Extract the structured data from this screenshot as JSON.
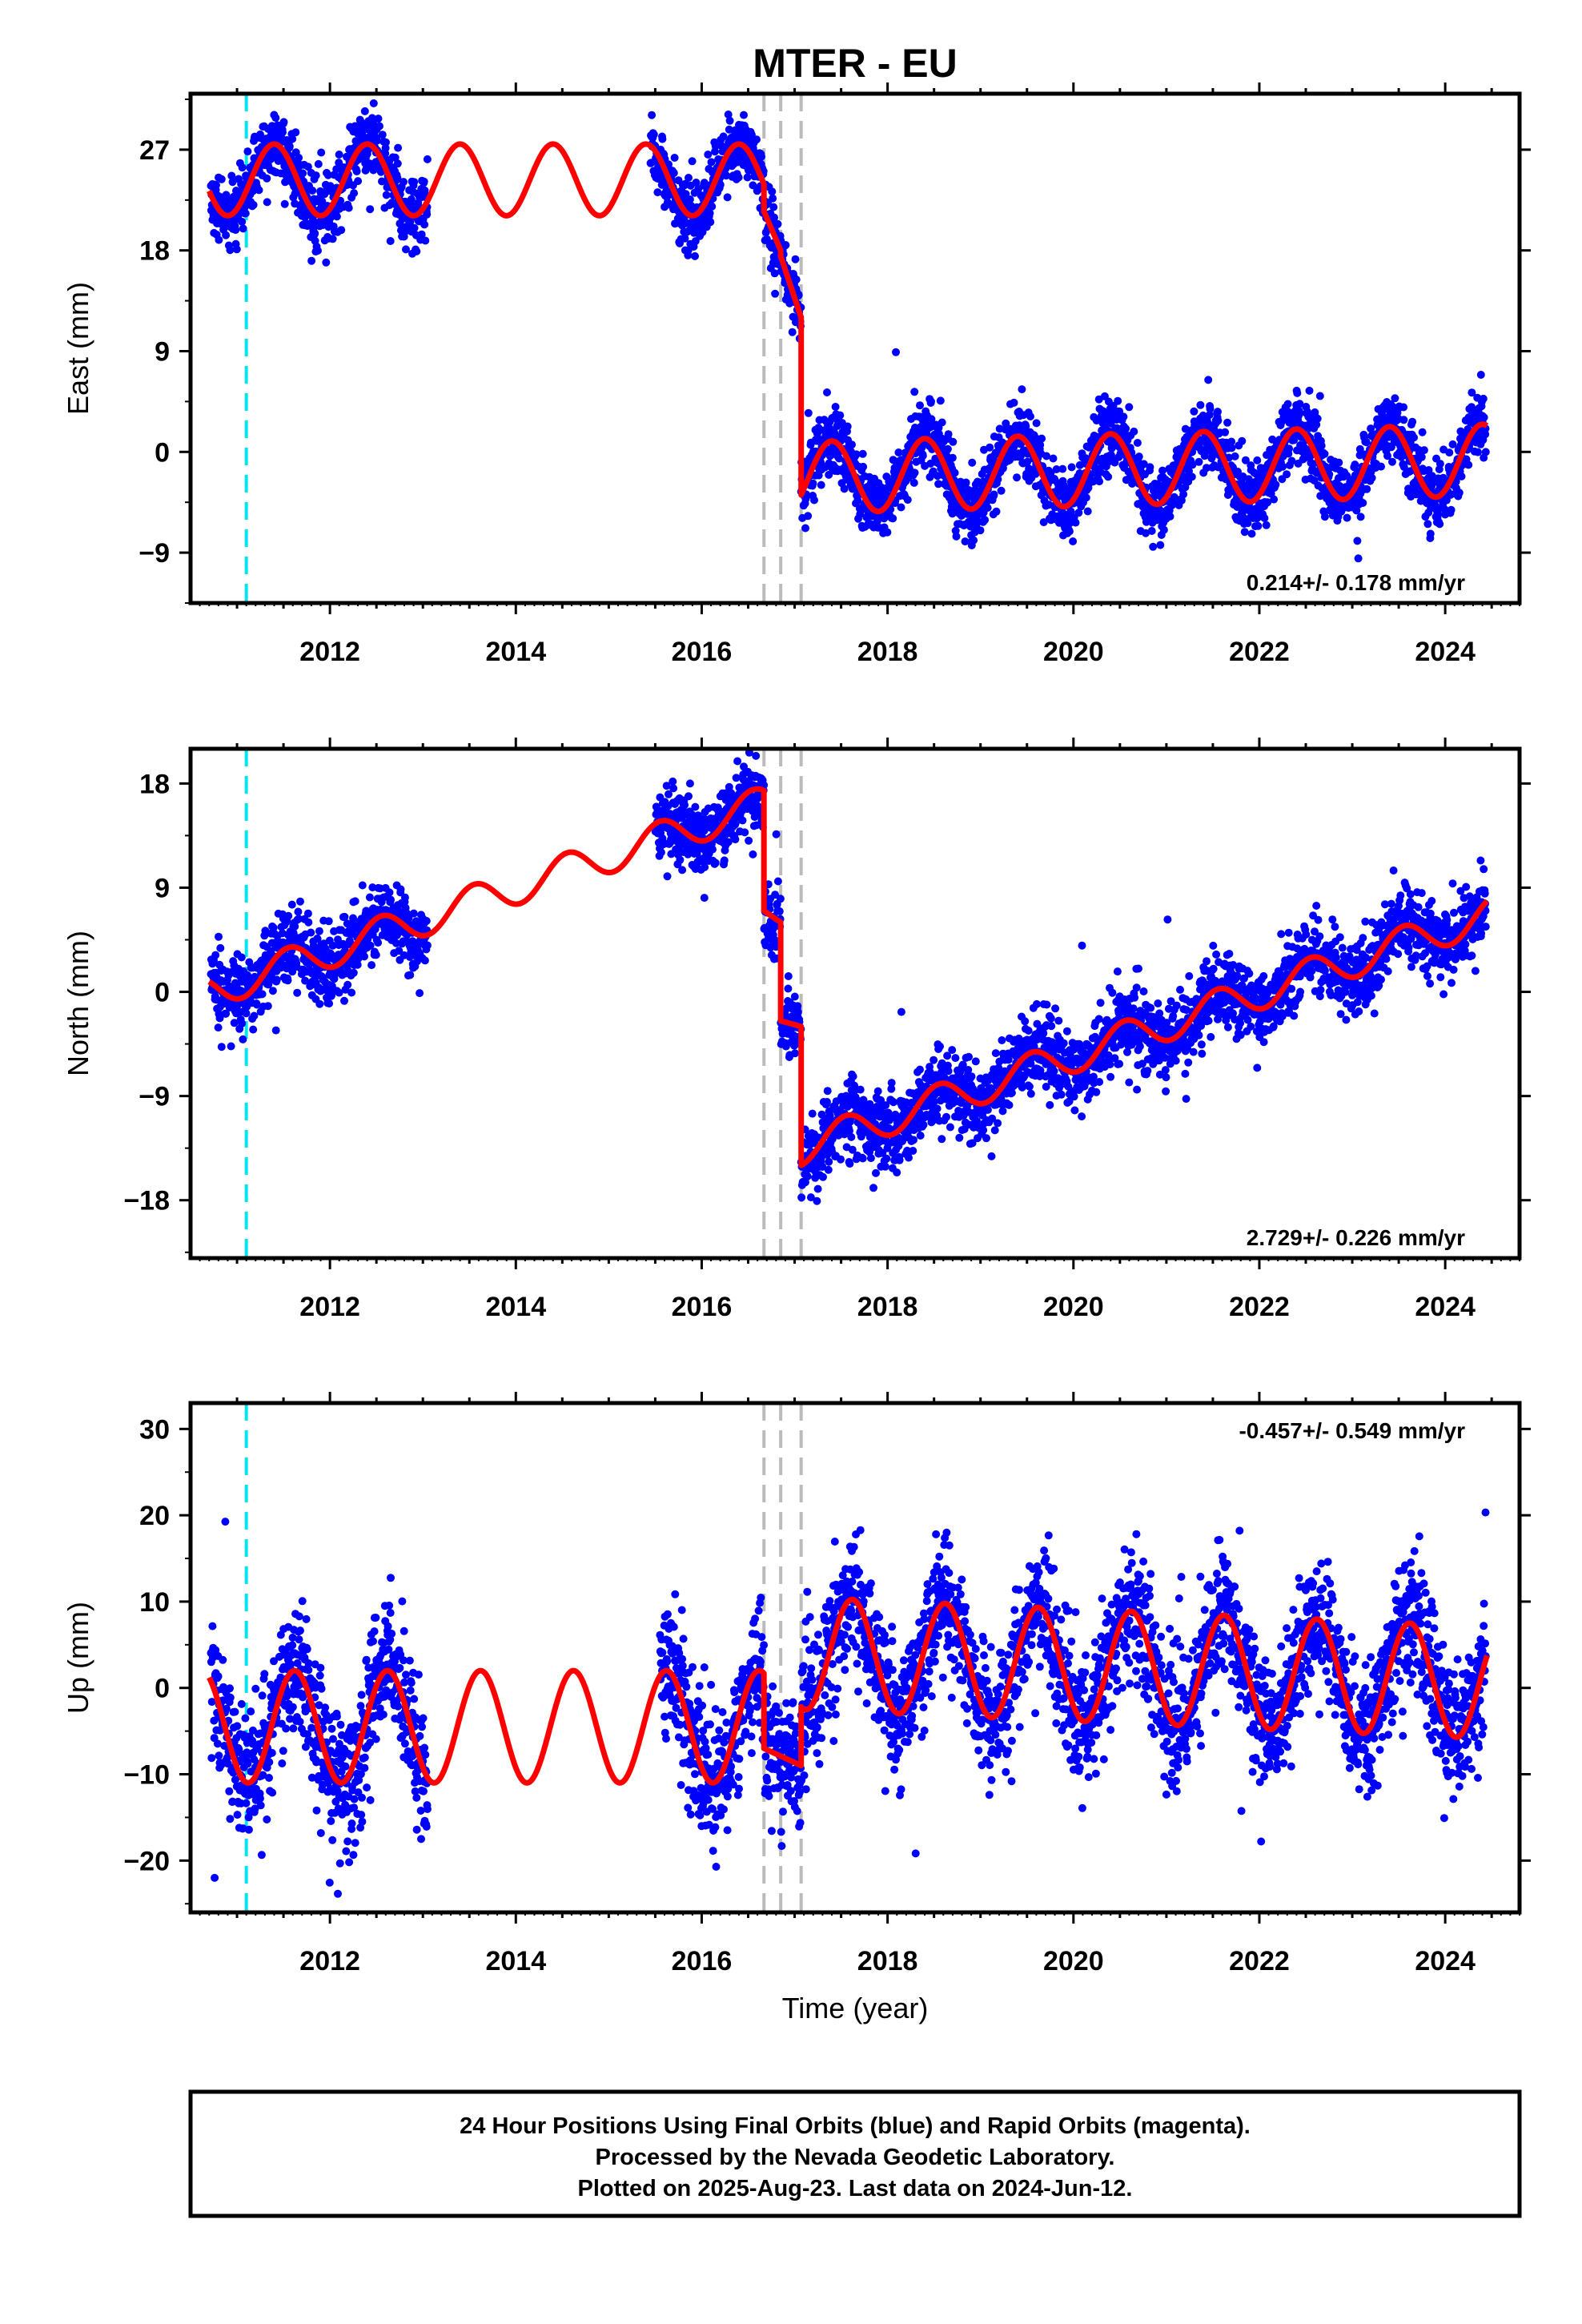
{
  "title": "MTER - EU",
  "footer": {
    "line1": "24 Hour Positions Using Final Orbits (blue) and Rapid Orbits (magenta).",
    "line2": "Processed by the Nevada Geodetic Laboratory.",
    "line3": "Plotted on 2025-Aug-23. Last data on 2024-Jun-12."
  },
  "colors": {
    "observations": "#0000ff",
    "model": "#ff0000",
    "antenna_change": "#00e5ee",
    "equipment_change": "#bbbbbb"
  },
  "chart_data": [
    {
      "type": "scatter",
      "panel": "east",
      "ylabel": "East (mm)",
      "xlabel": "",
      "xlim": [
        2010.5,
        2024.8
      ],
      "ylim": [
        -13.5,
        32
      ],
      "xticks": [
        2012,
        2014,
        2016,
        2018,
        2020,
        2022,
        2024
      ],
      "yticks": [
        -9,
        0,
        9,
        18,
        27
      ],
      "ytick_labels": [
        "−9",
        "0",
        "9",
        "18",
        "27"
      ],
      "rate_label": "0.214+/- 0.178 mm/yr",
      "rate_position": "bottom-right",
      "vertical_lines": [
        {
          "x": 2011.1,
          "kind": "antenna_change"
        },
        {
          "x": 2016.67,
          "kind": "equipment_change"
        },
        {
          "x": 2016.85,
          "kind": "equipment_change"
        },
        {
          "x": 2017.07,
          "kind": "equipment_change"
        }
      ],
      "series": [
        {
          "kind": "model",
          "segments": [
            {
              "x": [
                2010.7,
                2016.67
              ],
              "offset": 24.3,
              "amplitude": 3.2,
              "phase_peak": 0.4,
              "trend": 0.0
            },
            {
              "x": [
                2016.67,
                2016.85
              ],
              "values": [
                21.5,
                18.0
              ]
            },
            {
              "x": [
                2016.85,
                2017.07
              ],
              "values": [
                17.5,
                12.0
              ]
            },
            {
              "x": [
                2017.07,
                2024.45
              ],
              "offset": -2.3,
              "amplitude": 3.2,
              "phase_peak": 0.4,
              "trend": 0.214
            }
          ]
        },
        {
          "kind": "observations",
          "count": 4200,
          "noise": 1.5,
          "gaps": [
            [
              2013.05,
              2015.45
            ]
          ]
        }
      ]
    },
    {
      "type": "scatter",
      "panel": "north",
      "ylabel": "North (mm)",
      "xlabel": "",
      "xlim": [
        2010.5,
        2024.8
      ],
      "ylim": [
        -23,
        21
      ],
      "xticks": [
        2012,
        2014,
        2016,
        2018,
        2020,
        2022,
        2024
      ],
      "yticks": [
        -18,
        -9,
        0,
        9,
        18
      ],
      "ytick_labels": [
        "−18",
        "−9",
        "0",
        "9",
        "18"
      ],
      "rate_label": "2.729+/- 0.226 mm/yr",
      "rate_position": "bottom-right",
      "vertical_lines": [
        {
          "x": 2011.1,
          "kind": "antenna_change"
        },
        {
          "x": 2016.67,
          "kind": "equipment_change"
        },
        {
          "x": 2016.85,
          "kind": "equipment_change"
        },
        {
          "x": 2017.07,
          "kind": "equipment_change"
        }
      ],
      "series": [
        {
          "kind": "model",
          "segments": [
            {
              "x": [
                2010.7,
                2016.67
              ],
              "offset": 0.0,
              "amplitude": 1.5,
              "phase_peak": 0.55,
              "trend": 2.729,
              "t0": 2010.7
            },
            {
              "x": [
                2016.67,
                2016.85
              ],
              "values": [
                7.0,
                6.0
              ]
            },
            {
              "x": [
                2016.85,
                2017.07
              ],
              "values": [
                -2.5,
                -3.0
              ]
            },
            {
              "x": [
                2017.07,
                2024.45
              ],
              "offset": -13.5,
              "amplitude": 1.5,
              "phase_peak": 0.55,
              "trend": 2.729,
              "t0": 2017.07
            }
          ]
        },
        {
          "kind": "observations",
          "count": 4200,
          "noise": 1.6,
          "gaps": [
            [
              2013.05,
              2015.5
            ]
          ]
        }
      ]
    },
    {
      "type": "scatter",
      "panel": "up",
      "ylabel": "Up (mm)",
      "xlabel": "Time (year)",
      "xlim": [
        2010.5,
        2024.8
      ],
      "ylim": [
        -26,
        33
      ],
      "xticks": [
        2012,
        2014,
        2016,
        2018,
        2020,
        2022,
        2024
      ],
      "yticks": [
        -20,
        -10,
        0,
        10,
        20,
        30
      ],
      "ytick_labels": [
        "−20",
        "−10",
        "0",
        "10",
        "20",
        "30"
      ],
      "rate_label": "-0.457+/- 0.549 mm/yr",
      "rate_position": "top-right",
      "vertical_lines": [
        {
          "x": 2011.1,
          "kind": "antenna_change"
        },
        {
          "x": 2016.67,
          "kind": "equipment_change"
        },
        {
          "x": 2016.85,
          "kind": "equipment_change"
        },
        {
          "x": 2017.07,
          "kind": "equipment_change"
        }
      ],
      "series": [
        {
          "kind": "model",
          "segments": [
            {
              "x": [
                2010.7,
                2016.67
              ],
              "offset": -4.5,
              "amplitude": 6.5,
              "phase_peak": 0.62,
              "trend": 0.0
            },
            {
              "x": [
                2016.67,
                2017.07
              ],
              "values": [
                -7.0,
                -9.0
              ]
            },
            {
              "x": [
                2017.07,
                2024.45
              ],
              "offset": 4.0,
              "amplitude": 6.5,
              "phase_peak": 0.62,
              "trend": -0.457,
              "t0": 2017.07
            }
          ]
        },
        {
          "kind": "observations",
          "count": 4200,
          "noise": 3.8,
          "gaps": [
            [
              2013.05,
              2015.55
            ]
          ]
        }
      ]
    }
  ]
}
